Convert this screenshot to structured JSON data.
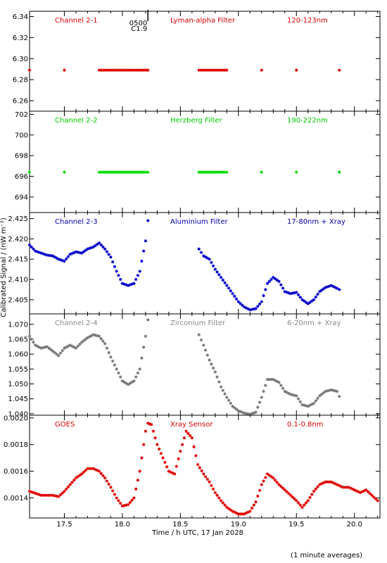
{
  "chart_data": [
    {
      "type": "scatter",
      "panel_labels": [
        "Channel 2-1",
        "Lyman-alpha Filter",
        "120-123nm"
      ],
      "label_color": "#dd0000",
      "marker": "asterisk",
      "ylim": [
        6.25,
        6.345
      ],
      "yticks": [
        "6.26",
        "6.28",
        "6.30",
        "6.32",
        "6.34"
      ],
      "ytick_values": [
        6.26,
        6.28,
        6.3,
        6.32,
        6.34
      ],
      "annotation": {
        "lines": [
          "0500",
          "C1.9"
        ],
        "x": 18.22
      },
      "series": [
        {
          "color": "#e00000",
          "points": [
            [
              17.2,
              6.289
            ],
            [
              17.5,
              6.289
            ],
            [
              17.8,
              6.289
            ],
            [
              18.0,
              6.289
            ],
            [
              18.22,
              6.289
            ],
            [
              18.66,
              6.289
            ],
            [
              18.9,
              6.289
            ],
            [
              19.2,
              6.289
            ],
            [
              19.5,
              6.289
            ],
            [
              19.87,
              6.289
            ]
          ]
        }
      ]
    },
    {
      "type": "scatter",
      "panel_labels": [
        "Channel 2-2",
        "Herzberg Filter",
        "190-222nm"
      ],
      "label_color": "#00cc00",
      "marker": "asterisk",
      "ylim": [
        692.5,
        702.3
      ],
      "yticks": [
        "694",
        "696",
        "698",
        "700",
        "702"
      ],
      "ytick_values": [
        694,
        696,
        698,
        700,
        702
      ],
      "series": [
        {
          "color": "#00dd00",
          "points": [
            [
              17.2,
              696.4
            ],
            [
              17.5,
              696.4
            ],
            [
              17.8,
              696.4
            ],
            [
              18.0,
              696.4
            ],
            [
              18.22,
              696.4
            ],
            [
              18.66,
              696.4
            ],
            [
              18.9,
              696.4
            ],
            [
              19.2,
              696.4
            ],
            [
              19.5,
              696.4
            ],
            [
              19.87,
              696.4
            ]
          ]
        }
      ]
    },
    {
      "type": "scatter",
      "panel_labels": [
        "Channel 2-3",
        "Aluminium Filter",
        "17-80nm + Xray"
      ],
      "label_color": "#0000aa",
      "marker": "asterisk",
      "ylim": [
        2.4015,
        2.4265
      ],
      "yticks": [
        "2.405",
        "2.410",
        "2.415",
        "2.420",
        "2.425"
      ],
      "ytick_values": [
        2.405,
        2.41,
        2.415,
        2.42,
        2.425
      ],
      "ylabel": "Calibrated Signal / (nW m⁻²)",
      "series": [
        {
          "color": "#0000cc",
          "points": [
            [
              17.2,
              2.4185
            ],
            [
              17.25,
              2.417
            ],
            [
              17.3,
              2.4165
            ],
            [
              17.35,
              2.416
            ],
            [
              17.4,
              2.4158
            ],
            [
              17.45,
              2.415
            ],
            [
              17.5,
              2.4145
            ],
            [
              17.55,
              2.4162
            ],
            [
              17.6,
              2.4168
            ],
            [
              17.65,
              2.4165
            ],
            [
              17.7,
              2.4175
            ],
            [
              17.75,
              2.418
            ],
            [
              17.8,
              2.419
            ],
            [
              17.85,
              2.4175
            ],
            [
              17.9,
              2.4155
            ],
            [
              17.95,
              2.412
            ],
            [
              18.0,
              2.409
            ],
            [
              18.05,
              2.4085
            ],
            [
              18.1,
              2.409
            ],
            [
              18.15,
              2.412
            ],
            [
              18.2,
              2.4195
            ],
            [
              18.22,
              2.4245
            ],
            [
              18.66,
              2.4175
            ],
            [
              18.7,
              2.4158
            ],
            [
              18.75,
              2.415
            ],
            [
              18.8,
              2.4125
            ],
            [
              18.85,
              2.4105
            ],
            [
              18.9,
              2.4085
            ],
            [
              18.95,
              2.4065
            ],
            [
              19.0,
              2.4045
            ],
            [
              19.05,
              2.4032
            ],
            [
              19.1,
              2.4025
            ],
            [
              19.15,
              2.4028
            ],
            [
              19.2,
              2.4045
            ],
            [
              19.25,
              2.409
            ],
            [
              19.3,
              2.4105
            ],
            [
              19.35,
              2.4095
            ],
            [
              19.4,
              2.407
            ],
            [
              19.45,
              2.4065
            ],
            [
              19.5,
              2.4068
            ],
            [
              19.55,
              2.405
            ],
            [
              19.6,
              2.404
            ],
            [
              19.65,
              2.405
            ],
            [
              19.7,
              2.407
            ],
            [
              19.75,
              2.408
            ],
            [
              19.8,
              2.4085
            ],
            [
              19.85,
              2.4078
            ],
            [
              19.87,
              2.4075
            ]
          ]
        }
      ]
    },
    {
      "type": "scatter",
      "panel_labels": [
        "Channel 2-4",
        "Zirconium Filter",
        "6-20nm + Xray"
      ],
      "label_color": "#888888",
      "marker": "asterisk",
      "ylim": [
        1.0395,
        1.0735
      ],
      "yticks": [
        "1.040",
        "1.045",
        "1.050",
        "1.055",
        "1.060",
        "1.065",
        "1.070"
      ],
      "ytick_values": [
        1.04,
        1.045,
        1.05,
        1.055,
        1.06,
        1.065,
        1.07
      ],
      "series": [
        {
          "color": "#777777",
          "points": [
            [
              17.2,
              1.066
            ],
            [
              17.25,
              1.063
            ],
            [
              17.3,
              1.062
            ],
            [
              17.35,
              1.0625
            ],
            [
              17.4,
              1.061
            ],
            [
              17.45,
              1.0595
            ],
            [
              17.5,
              1.062
            ],
            [
              17.55,
              1.063
            ],
            [
              17.6,
              1.062
            ],
            [
              17.65,
              1.064
            ],
            [
              17.7,
              1.0655
            ],
            [
              17.75,
              1.0665
            ],
            [
              17.8,
              1.066
            ],
            [
              17.85,
              1.0635
            ],
            [
              17.9,
              1.059
            ],
            [
              17.95,
              1.055
            ],
            [
              18.0,
              1.051
            ],
            [
              18.05,
              1.0498
            ],
            [
              18.1,
              1.051
            ],
            [
              18.15,
              1.055
            ],
            [
              18.2,
              1.066
            ],
            [
              18.22,
              1.0715
            ],
            [
              18.66,
              1.0665
            ],
            [
              18.7,
              1.063
            ],
            [
              18.75,
              1.058
            ],
            [
              18.8,
              1.054
            ],
            [
              18.85,
              1.049
            ],
            [
              18.9,
              1.0455
            ],
            [
              18.95,
              1.0425
            ],
            [
              19.0,
              1.041
            ],
            [
              19.05,
              1.0402
            ],
            [
              19.1,
              1.0398
            ],
            [
              19.15,
              1.0405
            ],
            [
              19.2,
              1.0455
            ],
            [
              19.25,
              1.0515
            ],
            [
              19.3,
              1.0515
            ],
            [
              19.35,
              1.0505
            ],
            [
              19.4,
              1.0475
            ],
            [
              19.45,
              1.0465
            ],
            [
              19.5,
              1.046
            ],
            [
              19.55,
              1.043
            ],
            [
              19.6,
              1.0425
            ],
            [
              19.65,
              1.0435
            ],
            [
              19.7,
              1.046
            ],
            [
              19.75,
              1.0475
            ],
            [
              19.8,
              1.048
            ],
            [
              19.85,
              1.0475
            ],
            [
              19.87,
              1.0458
            ]
          ]
        }
      ]
    },
    {
      "type": "scatter",
      "panel_labels": [
        "GOES",
        "Xray Sensor",
        "0.1-0.8nm"
      ],
      "label_color": "#dd0000",
      "marker": "asterisk",
      "ylim": [
        0.00125,
        0.00202
      ],
      "yticks": [
        "0.0014",
        "0.0016",
        "0.0018",
        "0.0020"
      ],
      "ytick_values": [
        0.0014,
        0.0016,
        0.0018,
        0.002
      ],
      "series": [
        {
          "color": "#e00000",
          "points": [
            [
              17.2,
              0.00145
            ],
            [
              17.3,
              0.00142
            ],
            [
              17.4,
              0.00142
            ],
            [
              17.45,
              0.00141
            ],
            [
              17.5,
              0.00145
            ],
            [
              17.55,
              0.0015
            ],
            [
              17.6,
              0.00155
            ],
            [
              17.65,
              0.00158
            ],
            [
              17.7,
              0.00162
            ],
            [
              17.75,
              0.00162
            ],
            [
              17.8,
              0.0016
            ],
            [
              17.85,
              0.00155
            ],
            [
              17.9,
              0.00148
            ],
            [
              17.95,
              0.0014
            ],
            [
              18.0,
              0.00134
            ],
            [
              18.05,
              0.00135
            ],
            [
              18.1,
              0.0014
            ],
            [
              18.15,
              0.0016
            ],
            [
              18.2,
              0.0019
            ],
            [
              18.22,
              0.00196
            ],
            [
              18.25,
              0.00195
            ],
            [
              18.3,
              0.0018
            ],
            [
              18.35,
              0.0017
            ],
            [
              18.4,
              0.0016
            ],
            [
              18.45,
              0.00158
            ],
            [
              18.5,
              0.00175
            ],
            [
              18.55,
              0.0019
            ],
            [
              18.6,
              0.00185
            ],
            [
              18.65,
              0.00165
            ],
            [
              18.7,
              0.00158
            ],
            [
              18.75,
              0.00152
            ],
            [
              18.8,
              0.00144
            ],
            [
              18.85,
              0.00138
            ],
            [
              18.9,
              0.00133
            ],
            [
              18.95,
              0.0013
            ],
            [
              19.0,
              0.00128
            ],
            [
              19.05,
              0.00128
            ],
            [
              19.1,
              0.0013
            ],
            [
              19.15,
              0.00137
            ],
            [
              19.2,
              0.0015
            ],
            [
              19.25,
              0.00158
            ],
            [
              19.3,
              0.00155
            ],
            [
              19.35,
              0.0015
            ],
            [
              19.4,
              0.00146
            ],
            [
              19.45,
              0.00142
            ],
            [
              19.5,
              0.00138
            ],
            [
              19.55,
              0.00133
            ],
            [
              19.6,
              0.00138
            ],
            [
              19.65,
              0.00145
            ],
            [
              19.7,
              0.0015
            ],
            [
              19.75,
              0.00152
            ],
            [
              19.8,
              0.00152
            ],
            [
              19.85,
              0.0015
            ],
            [
              19.9,
              0.00148
            ],
            [
              19.95,
              0.00148
            ],
            [
              20.0,
              0.00146
            ],
            [
              20.05,
              0.00144
            ],
            [
              20.1,
              0.00146
            ],
            [
              20.15,
              0.00142
            ],
            [
              20.2,
              0.00138
            ]
          ]
        }
      ]
    }
  ],
  "x_axis": {
    "label": "Time / h UTC, 17 Jan 2028",
    "xlim": [
      17.2,
      20.22
    ],
    "ticks": [
      "17.5",
      "18.0",
      "18.5",
      "19.0",
      "19.5",
      "20.0"
    ],
    "tick_values": [
      17.5,
      18.0,
      18.5,
      19.0,
      19.5,
      20.0
    ]
  },
  "footnote": "(1 minute averages)"
}
